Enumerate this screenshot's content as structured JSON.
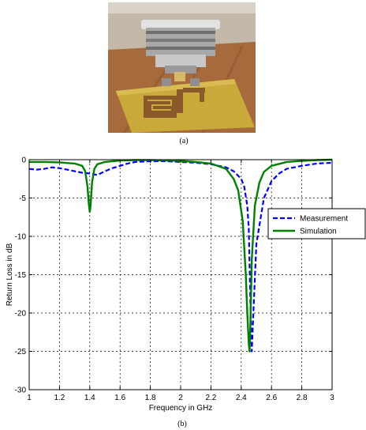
{
  "captions": {
    "a": "(a)",
    "b": "(b)"
  },
  "photo": {
    "description_icon": "antenna-photo",
    "colors": {
      "pcb": "#c8a93a",
      "copper": "#8a5a2a",
      "connector": "#b8b8b8",
      "table": "#a0683a"
    }
  },
  "chart_data": {
    "type": "line",
    "xlabel": "Frequency in GHz",
    "ylabel": "Return Loss in dB",
    "xlim": [
      1,
      3
    ],
    "ylim": [
      -30,
      0
    ],
    "xticks": [
      1,
      1.2,
      1.4,
      1.6,
      1.8,
      2,
      2.2,
      2.4,
      2.6,
      2.8,
      3
    ],
    "xtick_labels": [
      "1",
      "1.2",
      "1.4",
      "1.6",
      "1.8",
      "2",
      "2.2",
      "2.4",
      "2.6",
      "2.8",
      "3"
    ],
    "yticks": [
      0,
      -5,
      -10,
      -15,
      -20,
      -25,
      -30
    ],
    "ytick_labels": [
      "0",
      "-5",
      "-10",
      "-15",
      "-20",
      "-25",
      "-30"
    ],
    "grid": true,
    "legend_position": "right",
    "series": [
      {
        "name": "Measurement",
        "color": "#0000ff",
        "style": "dashed",
        "x": [
          1.0,
          1.05,
          1.1,
          1.15,
          1.2,
          1.25,
          1.3,
          1.35,
          1.4,
          1.45,
          1.5,
          1.55,
          1.6,
          1.65,
          1.7,
          1.8,
          1.9,
          2.0,
          2.1,
          2.2,
          2.3,
          2.35,
          2.4,
          2.42,
          2.44,
          2.45,
          2.46,
          2.47,
          2.48,
          2.5,
          2.55,
          2.6,
          2.65,
          2.7,
          2.8,
          2.9,
          3.0
        ],
        "y": [
          -1.2,
          -1.3,
          -1.2,
          -1.0,
          -1.1,
          -1.3,
          -1.5,
          -1.7,
          -1.8,
          -2.0,
          -1.5,
          -1.1,
          -0.8,
          -0.5,
          -0.3,
          -0.2,
          -0.2,
          -0.3,
          -0.4,
          -0.6,
          -1.0,
          -1.5,
          -2.5,
          -3.5,
          -6.0,
          -9.0,
          -18.0,
          -25.0,
          -20.0,
          -11.0,
          -5.0,
          -2.8,
          -1.8,
          -1.2,
          -0.8,
          -0.5,
          -0.4
        ]
      },
      {
        "name": "Simulation",
        "color": "#008000",
        "style": "solid",
        "x": [
          1.0,
          1.1,
          1.2,
          1.3,
          1.35,
          1.37,
          1.385,
          1.395,
          1.4,
          1.405,
          1.415,
          1.43,
          1.45,
          1.5,
          1.6,
          1.7,
          1.8,
          1.9,
          2.0,
          2.1,
          2.2,
          2.3,
          2.35,
          2.38,
          2.41,
          2.43,
          2.44,
          2.45,
          2.455,
          2.46,
          2.47,
          2.49,
          2.52,
          2.55,
          2.6,
          2.7,
          2.8,
          2.9,
          3.0
        ],
        "y": [
          -0.3,
          -0.3,
          -0.35,
          -0.5,
          -0.8,
          -1.5,
          -3.5,
          -6.0,
          -6.8,
          -6.0,
          -3.0,
          -1.2,
          -0.6,
          -0.3,
          -0.1,
          -0.05,
          -0.05,
          -0.1,
          -0.15,
          -0.3,
          -0.5,
          -1.2,
          -2.5,
          -4.0,
          -8.0,
          -15.0,
          -20.0,
          -24.0,
          -25.0,
          -22.0,
          -13.0,
          -6.0,
          -3.0,
          -1.6,
          -0.8,
          -0.3,
          -0.15,
          -0.05,
          0.0
        ]
      }
    ]
  }
}
